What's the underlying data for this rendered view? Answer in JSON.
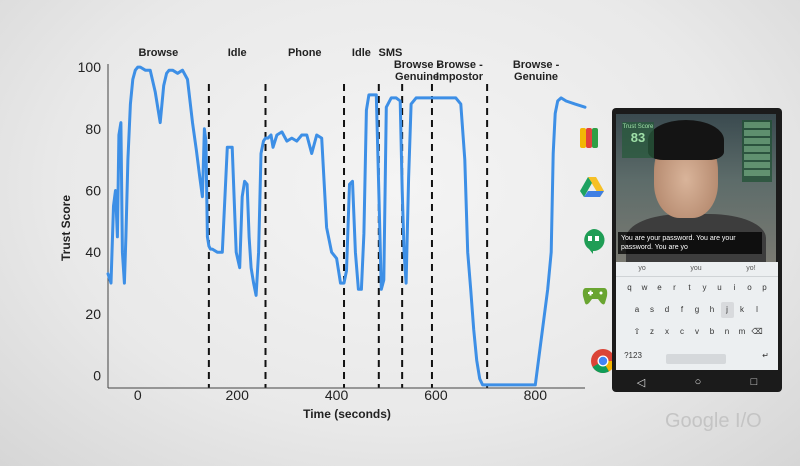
{
  "chart_data": {
    "type": "line",
    "title": "",
    "xlabel": "Time (seconds)",
    "ylabel": "Trust Score",
    "xlim": [
      -60,
      900
    ],
    "ylim": [
      -4,
      101
    ],
    "xticks": [
      0,
      200,
      400,
      600,
      800
    ],
    "yticks": [
      0,
      20,
      40,
      60,
      80,
      100
    ],
    "grid": false,
    "segments": [
      "Browse",
      "Idle",
      "Phone",
      "Idle",
      "SMS",
      "Browse - Genuine",
      "Browse - Impostor",
      "Browse - Genuine"
    ],
    "dividers_x": [
      143,
      257,
      415,
      485,
      532,
      592,
      703
    ],
    "series": [
      {
        "color": "#3d8fe6",
        "x": [
          -60,
          -54,
          -49,
          -45,
          -41,
          -38,
          -34,
          -31,
          -27,
          -24,
          -20,
          -15,
          -10,
          -5,
          0,
          5,
          15,
          25,
          35,
          45,
          52,
          58,
          63,
          70,
          80,
          90,
          100,
          110,
          118,
          125,
          130,
          134,
          137,
          140,
          143,
          146,
          150,
          160,
          170,
          180,
          190,
          198,
          205,
          210,
          215,
          220,
          224,
          228,
          233,
          238,
          243,
          248,
          253,
          257,
          262,
          268,
          272,
          280,
          290,
          300,
          310,
          320,
          330,
          340,
          350,
          360,
          370,
          380,
          390,
          400,
          408,
          415,
          420,
          426,
          432,
          438,
          444,
          450,
          455,
          460,
          465,
          470,
          475,
          480,
          485,
          490,
          495,
          500,
          510,
          520,
          528,
          532,
          536,
          540,
          545,
          550,
          560,
          580,
          600,
          620,
          640,
          650,
          658,
          664,
          670,
          676,
          682,
          688,
          694,
          700,
          703,
          710,
          740,
          770,
          800,
          825,
          832,
          836,
          840,
          845,
          852,
          862,
          880,
          900
        ],
        "y": [
          33,
          30,
          55,
          60,
          45,
          78,
          82,
          40,
          30,
          45,
          70,
          88,
          96,
          99,
          100,
          100,
          99,
          99,
          92,
          82,
          94,
          98,
          99,
          99,
          98,
          99,
          96,
          82,
          73,
          64,
          58,
          80,
          76,
          45,
          42,
          41,
          41,
          40,
          40,
          74,
          74,
          40,
          35,
          58,
          63,
          62,
          45,
          35,
          30,
          26,
          40,
          72,
          76,
          77,
          77,
          78,
          74,
          78,
          79,
          76,
          77,
          76,
          78,
          78,
          72,
          78,
          77,
          48,
          40,
          38,
          30,
          30,
          34,
          62,
          63,
          40,
          28,
          28,
          46,
          86,
          91,
          91,
          91,
          91,
          60,
          28,
          31,
          87,
          90,
          90,
          89,
          60,
          40,
          30,
          64,
          88,
          90,
          90,
          90,
          90,
          90,
          88,
          70,
          40,
          28,
          15,
          5,
          -1,
          -3,
          -3,
          -3,
          -3,
          -3,
          -3,
          -3,
          28,
          40,
          72,
          85,
          89,
          90,
          89,
          88,
          87
        ]
      }
    ]
  },
  "phone": {
    "score_label": "Trust Score",
    "score_value": "83",
    "caption_text": "You are your password.  You are your password.  You are yo",
    "suggestions": [
      "yo",
      "you",
      "yo!"
    ],
    "keys_row1": [
      "q",
      "w",
      "e",
      "r",
      "t",
      "y",
      "u",
      "i",
      "o",
      "p"
    ],
    "keys_row2": [
      "a",
      "s",
      "d",
      "f",
      "g",
      "h",
      "j",
      "k",
      "l"
    ],
    "keys_row3": [
      "⇧",
      "z",
      "x",
      "c",
      "v",
      "b",
      "n",
      "m",
      "⌫"
    ],
    "keys_row4": [
      "?123",
      ",",
      ".",
      "↵"
    ],
    "nav": [
      "◁",
      "○",
      "□"
    ]
  },
  "app_icons": [
    "google-wallet-icon",
    "google-drive-icon",
    "hangouts-icon",
    "play-games-icon",
    "chrome-icon"
  ],
  "brand": "Google I/O",
  "colors": {
    "line": "#3d8fe6",
    "background": "#efefef"
  }
}
